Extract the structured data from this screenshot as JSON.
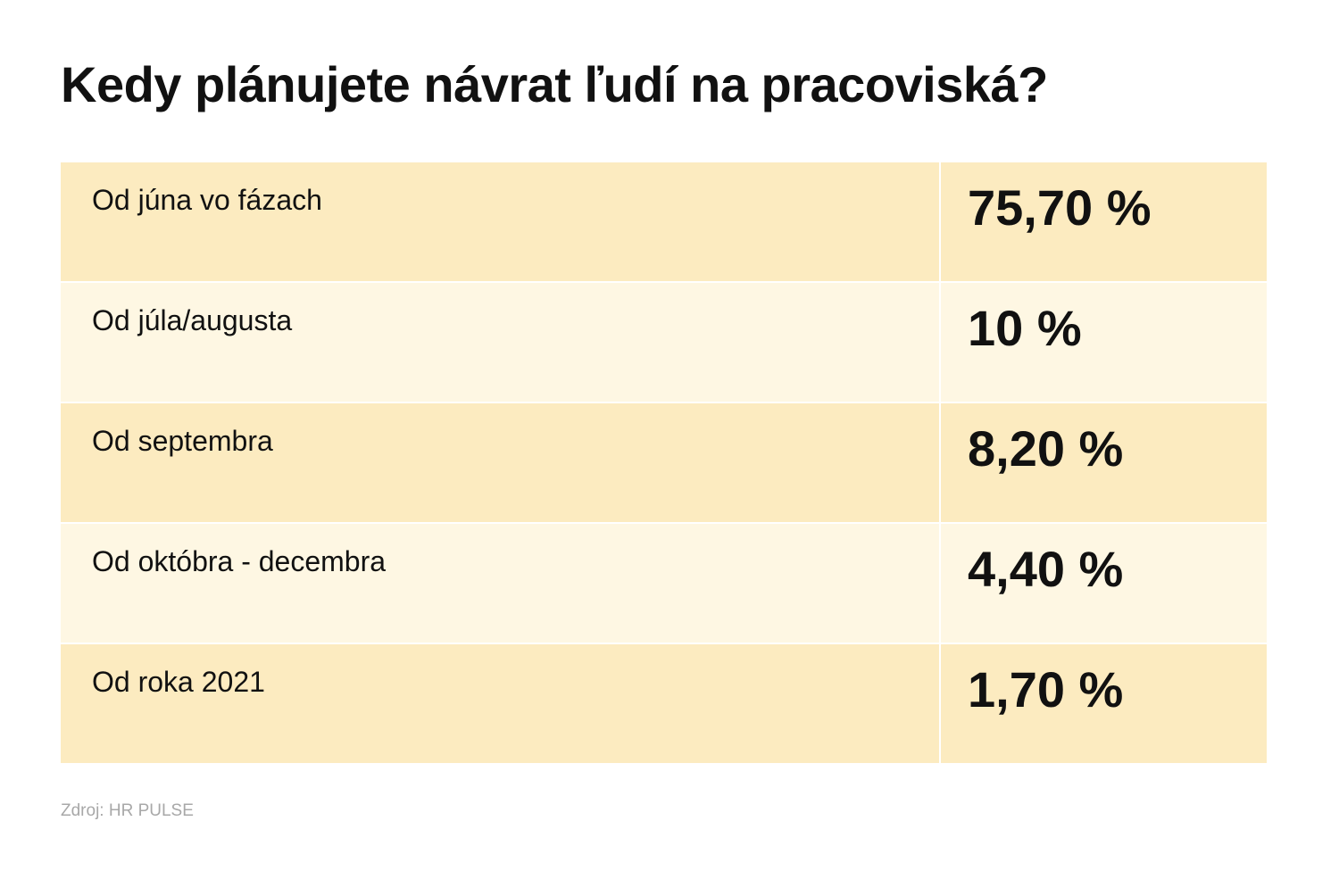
{
  "header": {
    "title": "Kedy plánujete návrat ľudí na pracoviská?"
  },
  "table": {
    "rows": [
      [
        "Od júna vo fázach",
        "75,70 %"
      ],
      [
        "Od júla/augusta",
        "10 %"
      ],
      [
        "Od septembra",
        "8,20 %"
      ],
      [
        "Od októbra - decembra",
        "4,40 %"
      ],
      [
        "Od roka 2021",
        "1,70 %"
      ]
    ]
  },
  "footer": {
    "source": "Zdroj: HR PULSE"
  }
}
